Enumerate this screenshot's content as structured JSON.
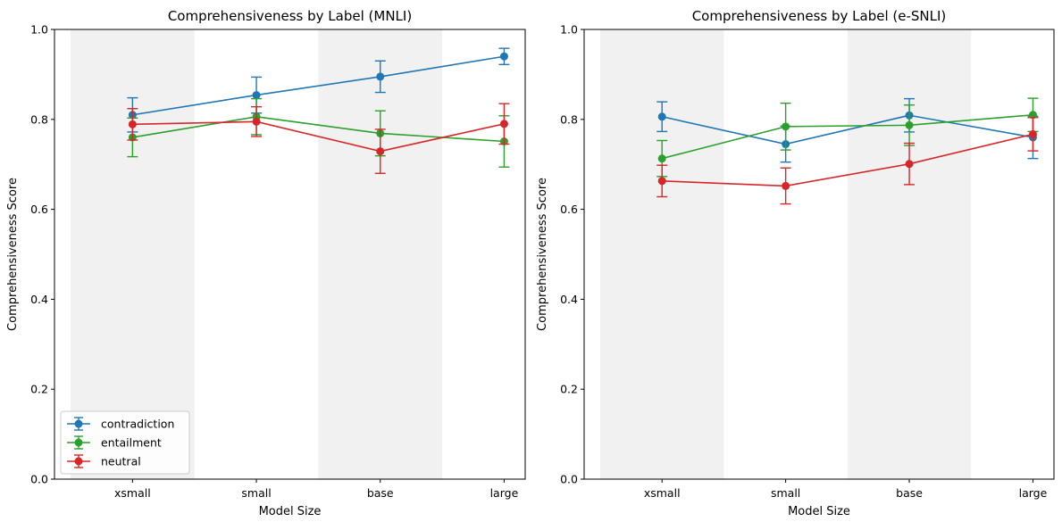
{
  "colors": {
    "contradiction": "#1f77b4",
    "entailment": "#2ca02c",
    "neutral": "#d62728",
    "band": "#f1f1f1"
  },
  "chart_data": [
    {
      "type": "line",
      "title": "Comprehensiveness by Label (MNLI)",
      "xlabel": "Model Size",
      "ylabel": "Comprehensiveness Score",
      "ylim": [
        0,
        1
      ],
      "yticks": [
        "0.0",
        "0.2",
        "0.4",
        "0.6",
        "0.8",
        "1.0"
      ],
      "categories": [
        "xsmall",
        "small",
        "base",
        "large"
      ],
      "shaded_categories": [
        "xsmall",
        "base"
      ],
      "error_bars": true,
      "legend": "lower-left",
      "series": [
        {
          "name": "contradiction",
          "values": [
            0.81,
            0.854,
            0.895,
            0.94
          ],
          "err": [
            0.038,
            0.04,
            0.035,
            0.018
          ]
        },
        {
          "name": "entailment",
          "values": [
            0.76,
            0.806,
            0.769,
            0.751
          ],
          "err": [
            0.043,
            0.04,
            0.05,
            0.057
          ]
        },
        {
          "name": "neutral",
          "values": [
            0.789,
            0.795,
            0.729,
            0.79
          ],
          "err": [
            0.035,
            0.033,
            0.049,
            0.045
          ]
        }
      ]
    },
    {
      "type": "line",
      "title": "Comprehensiveness by Label (e-SNLI)",
      "xlabel": "Model Size",
      "ylabel": "Comprehensiveness Score",
      "ylim": [
        0,
        1
      ],
      "yticks": [
        "0.0",
        "0.2",
        "0.4",
        "0.6",
        "0.8",
        "1.0"
      ],
      "categories": [
        "xsmall",
        "small",
        "base",
        "large"
      ],
      "shaded_categories": [
        "xsmall",
        "base"
      ],
      "error_bars": true,
      "legend": "none",
      "series": [
        {
          "name": "contradiction",
          "values": [
            0.806,
            0.745,
            0.809,
            0.76
          ],
          "err": [
            0.033,
            0.04,
            0.037,
            0.047
          ]
        },
        {
          "name": "entailment",
          "values": [
            0.713,
            0.784,
            0.787,
            0.81
          ],
          "err": [
            0.04,
            0.052,
            0.045,
            0.037
          ]
        },
        {
          "name": "neutral",
          "values": [
            0.663,
            0.652,
            0.701,
            0.767
          ],
          "err": [
            0.035,
            0.04,
            0.046,
            0.037
          ]
        }
      ]
    }
  ]
}
